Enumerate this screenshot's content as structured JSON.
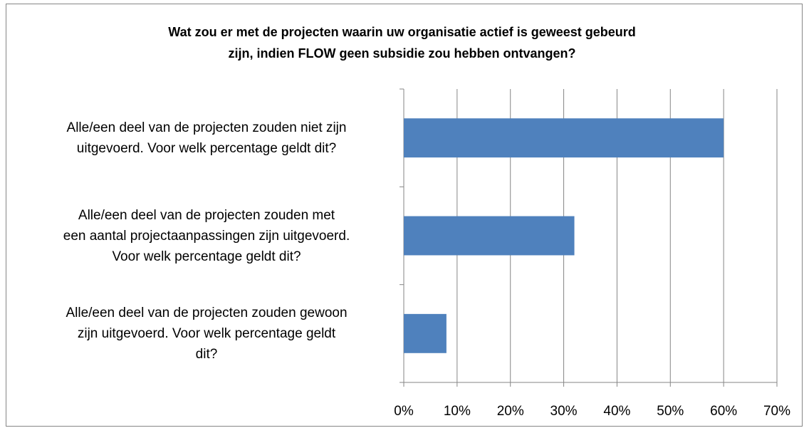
{
  "chart_data": {
    "type": "barh",
    "title": "Wat zou er met de projecten waarin uw organisatie actief is geweest gebeurd\nzijn, indien FLOW  geen subsidie zou hebben ontvangen?",
    "categories": [
      "Alle/een deel van de projecten zouden niet zijn\nuitgevoerd. Voor welk percentage geldt dit?",
      "Alle/een deel van de projecten zouden  met\neen aantal projectaanpassingen zijn uitgevoerd.\nVoor welk percentage geldt dit?",
      "Alle/een deel van de projecten zouden gewoon\nzijn uitgevoerd. Voor welk percentage geldt\ndit?"
    ],
    "values": [
      60,
      32,
      8
    ],
    "color": "#4f81bd",
    "xlim": [
      0,
      70
    ],
    "xticks": [
      {
        "value": 0,
        "label": "0%"
      },
      {
        "value": 10,
        "label": "10%"
      },
      {
        "value": 20,
        "label": "20%"
      },
      {
        "value": 30,
        "label": "30%"
      },
      {
        "value": 40,
        "label": "40%"
      },
      {
        "value": 50,
        "label": "50%"
      },
      {
        "value": 60,
        "label": "60%"
      },
      {
        "value": 70,
        "label": "70%"
      }
    ],
    "grid": true
  }
}
